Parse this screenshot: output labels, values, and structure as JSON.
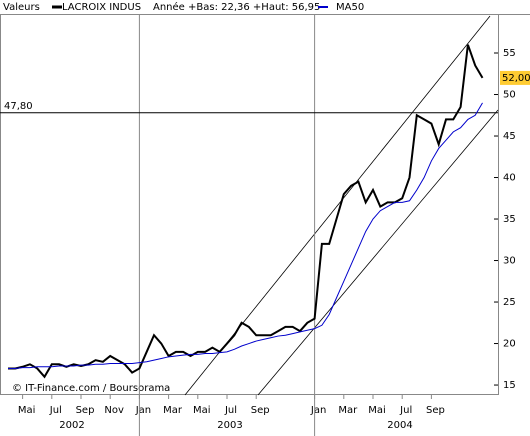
{
  "chart_data": {
    "type": "line",
    "header": "Valeurs",
    "subtitle": "Année +Bas: 22,36 +Haut: 56,95",
    "credit": "© IT-Finance.com / Boursorama",
    "years": [
      "2002",
      "2003",
      "2004"
    ],
    "categories": [
      null,
      null,
      "Mai",
      null,
      null,
      null,
      "Jul",
      null,
      null,
      null,
      "Sep",
      null,
      null,
      null,
      "Nov",
      null,
      null,
      null,
      "Jan",
      null,
      null,
      null,
      "Mar",
      null,
      null,
      null,
      "Mai",
      null,
      null,
      null,
      "Jul",
      null,
      null,
      null,
      "Sep",
      null,
      null,
      null,
      null,
      null,
      null,
      null,
      "Jan",
      null,
      null,
      null,
      "Mar",
      null,
      null,
      null,
      "Mai",
      null,
      null,
      null,
      "Jul",
      null,
      null,
      null,
      "Sep",
      null,
      null,
      null,
      null,
      null,
      null,
      null
    ],
    "series": [
      {
        "name": "LACROIX INDUS",
        "color": "#000000",
        "values": [
          17,
          17,
          17.2,
          17.5,
          17,
          16,
          17.5,
          17.5,
          17.2,
          17.5,
          17.3,
          17.5,
          18,
          17.8,
          18.5,
          18,
          17.5,
          16.5,
          17,
          19,
          21,
          20,
          18.5,
          19,
          19,
          18.5,
          19,
          19,
          19.5,
          19,
          20,
          21,
          22.5,
          22,
          21,
          21,
          21,
          21.5,
          22,
          22,
          21.5,
          22.5,
          23,
          32,
          32,
          35,
          38,
          39,
          39.5,
          37,
          38.5,
          36.5,
          37,
          37,
          37.5,
          40,
          47.5,
          47,
          46.5,
          44,
          47,
          47,
          48.5,
          56,
          53.5,
          52
        ]
      },
      {
        "name": "MA50",
        "color": "#0000cc",
        "values": [
          17,
          17,
          17.1,
          17.1,
          17.2,
          17.2,
          17.2,
          17.3,
          17.3,
          17.3,
          17.4,
          17.4,
          17.5,
          17.5,
          17.6,
          17.6,
          17.6,
          17.6,
          17.7,
          17.8,
          18,
          18.2,
          18.4,
          18.5,
          18.6,
          18.7,
          18.7,
          18.8,
          18.8,
          18.9,
          19,
          19.3,
          19.7,
          20,
          20.3,
          20.5,
          20.7,
          20.9,
          21,
          21.2,
          21.4,
          21.6,
          21.8,
          22.2,
          23.5,
          25.5,
          27.5,
          29.5,
          31.5,
          33.5,
          35,
          36,
          36.5,
          37,
          37,
          37.2,
          38.5,
          40,
          42,
          43.5,
          44.5,
          45.5,
          46,
          47,
          47.5,
          49
        ]
      }
    ],
    "hline": {
      "value": 47.8,
      "label": "47,80"
    },
    "last": {
      "value": 52,
      "label": "52,00"
    },
    "ylim": [
      13.8,
      59.7
    ],
    "yticks": [
      15,
      20,
      25,
      30,
      35,
      40,
      45,
      50,
      55
    ]
  }
}
